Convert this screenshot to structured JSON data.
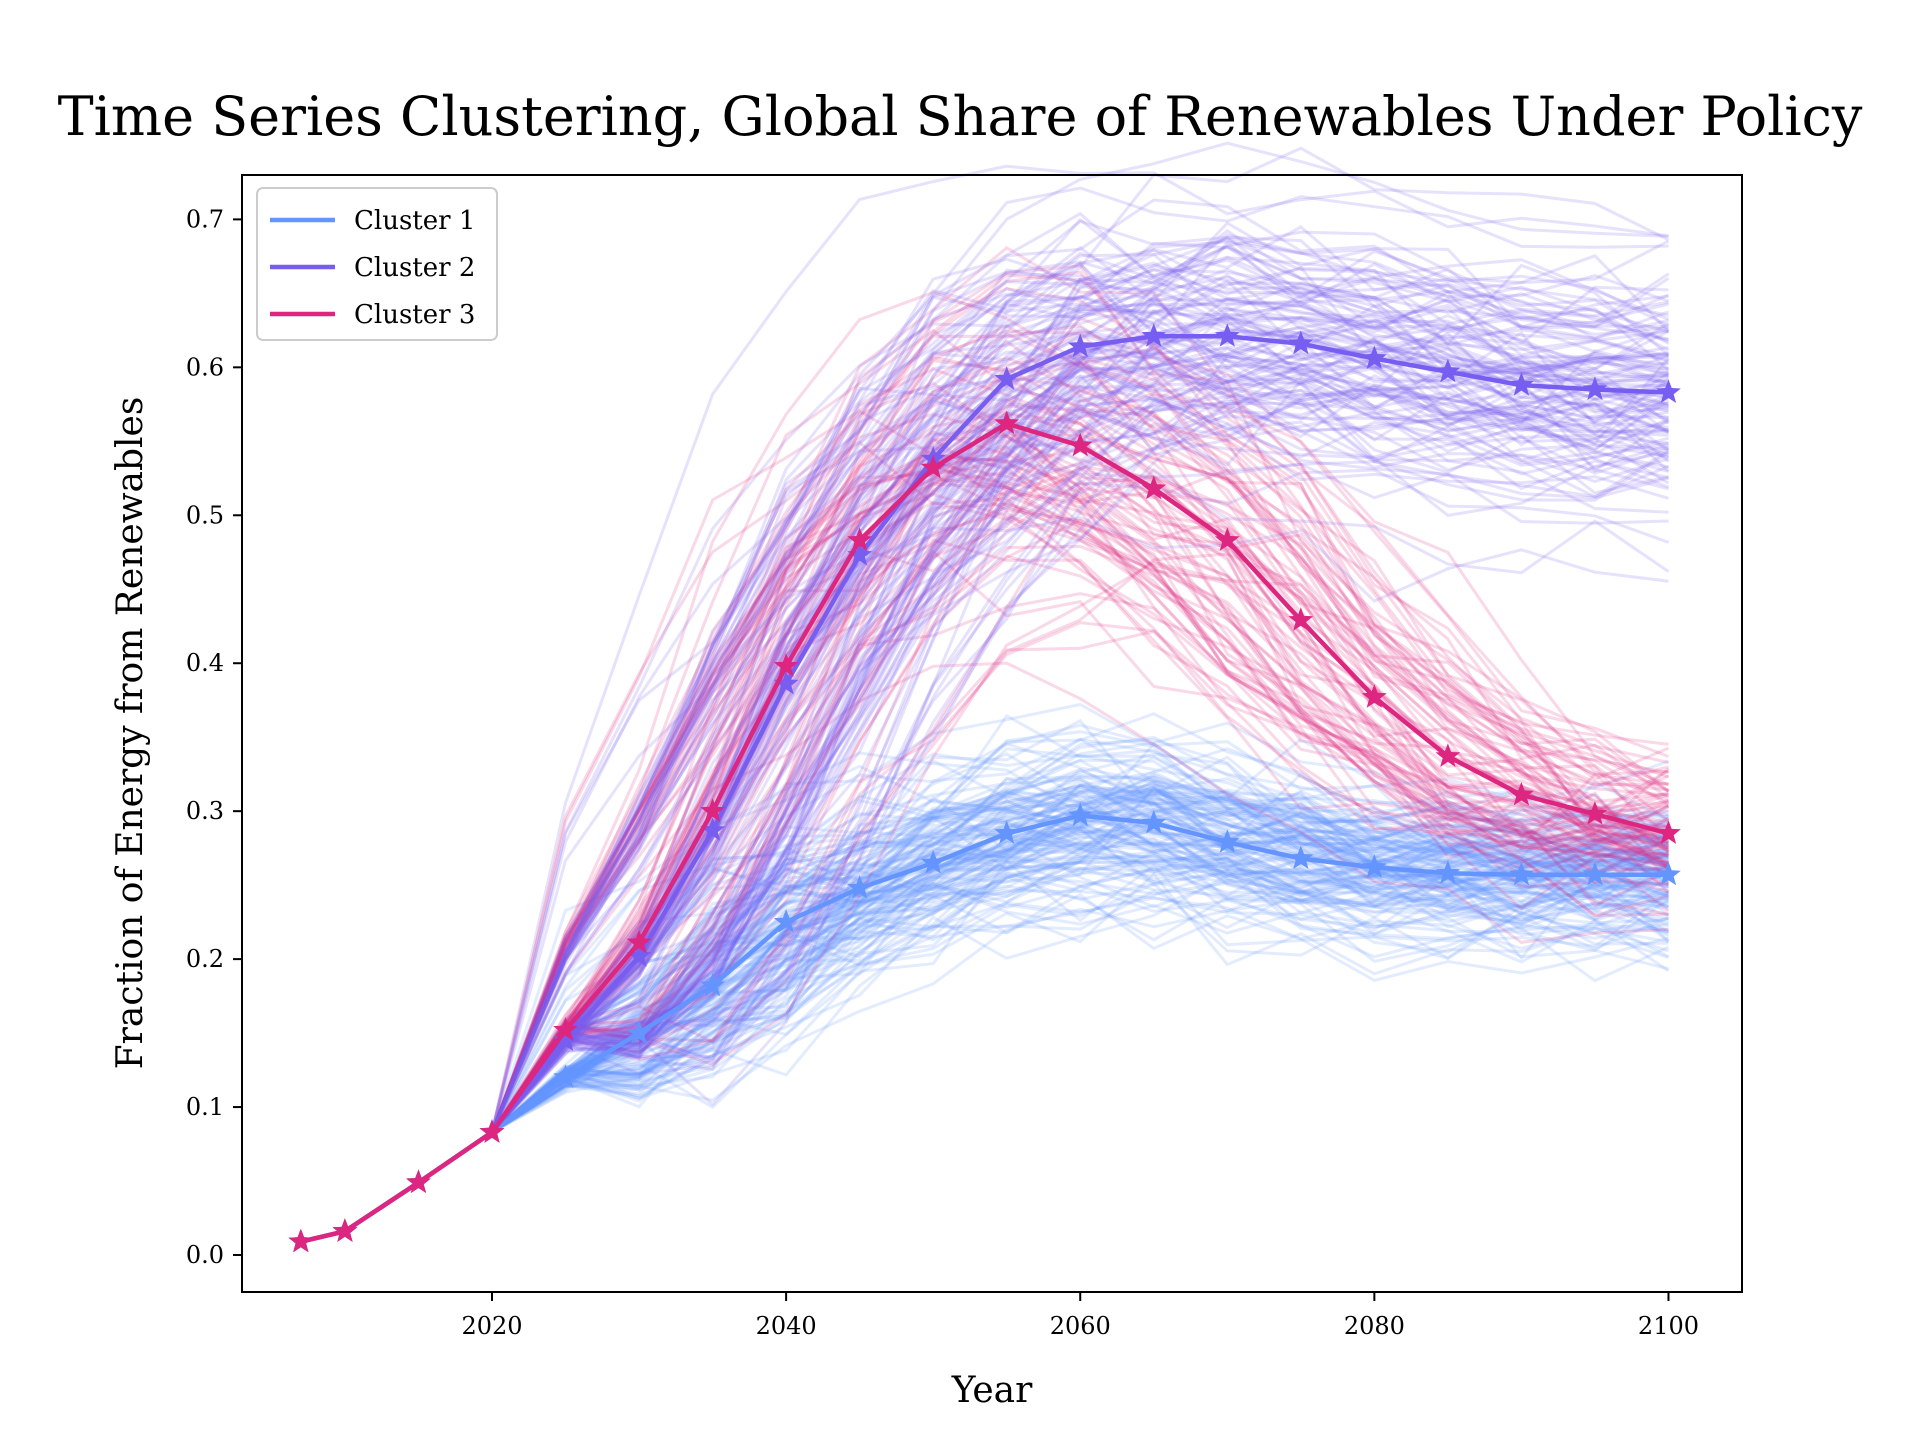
{
  "chart_data": {
    "type": "line",
    "title": "Time Series Clustering, Global Share of Renewables Under Policy",
    "xlabel": "Year",
    "ylabel": "Fraction of Energy from Renewables",
    "xlim": [
      2003,
      2105
    ],
    "ylim": [
      -0.025,
      0.73
    ],
    "xticks": [
      2020,
      2040,
      2060,
      2080,
      2100
    ],
    "yticks": [
      0.0,
      0.1,
      0.2,
      0.3,
      0.4,
      0.5,
      0.6,
      0.7
    ],
    "xtick_labels": [
      "2020",
      "2040",
      "2060",
      "2080",
      "2100"
    ],
    "ytick_labels": [
      "0.0",
      "0.1",
      "0.2",
      "0.3",
      "0.4",
      "0.5",
      "0.6",
      "0.7"
    ],
    "grid": false,
    "legend_position": "top-left",
    "x": [
      2007,
      2010,
      2015,
      2020,
      2025,
      2030,
      2035,
      2040,
      2045,
      2050,
      2055,
      2060,
      2065,
      2070,
      2075,
      2080,
      2085,
      2090,
      2095,
      2100
    ],
    "series": [
      {
        "name": "Cluster 1",
        "color": "#6495ff",
        "marker": "star",
        "values": [
          0.009,
          0.016,
          0.049,
          0.083,
          0.12,
          0.15,
          0.182,
          0.225,
          0.248,
          0.265,
          0.285,
          0.297,
          0.292,
          0.279,
          0.268,
          0.262,
          0.258,
          0.257,
          0.257,
          0.257
        ]
      },
      {
        "name": "Cluster 2",
        "color": "#785ef0",
        "marker": "star",
        "values": [
          0.009,
          0.016,
          0.049,
          0.083,
          0.145,
          0.202,
          0.287,
          0.386,
          0.473,
          0.538,
          0.592,
          0.614,
          0.621,
          0.621,
          0.616,
          0.606,
          0.597,
          0.588,
          0.585,
          0.583
        ]
      },
      {
        "name": "Cluster 3",
        "color": "#dc267f",
        "marker": "star",
        "values": [
          0.009,
          0.016,
          0.049,
          0.083,
          0.152,
          0.211,
          0.3,
          0.398,
          0.483,
          0.532,
          0.562,
          0.547,
          0.518,
          0.483,
          0.429,
          0.377,
          0.337,
          0.311,
          0.298,
          0.285
        ]
      }
    ]
  }
}
